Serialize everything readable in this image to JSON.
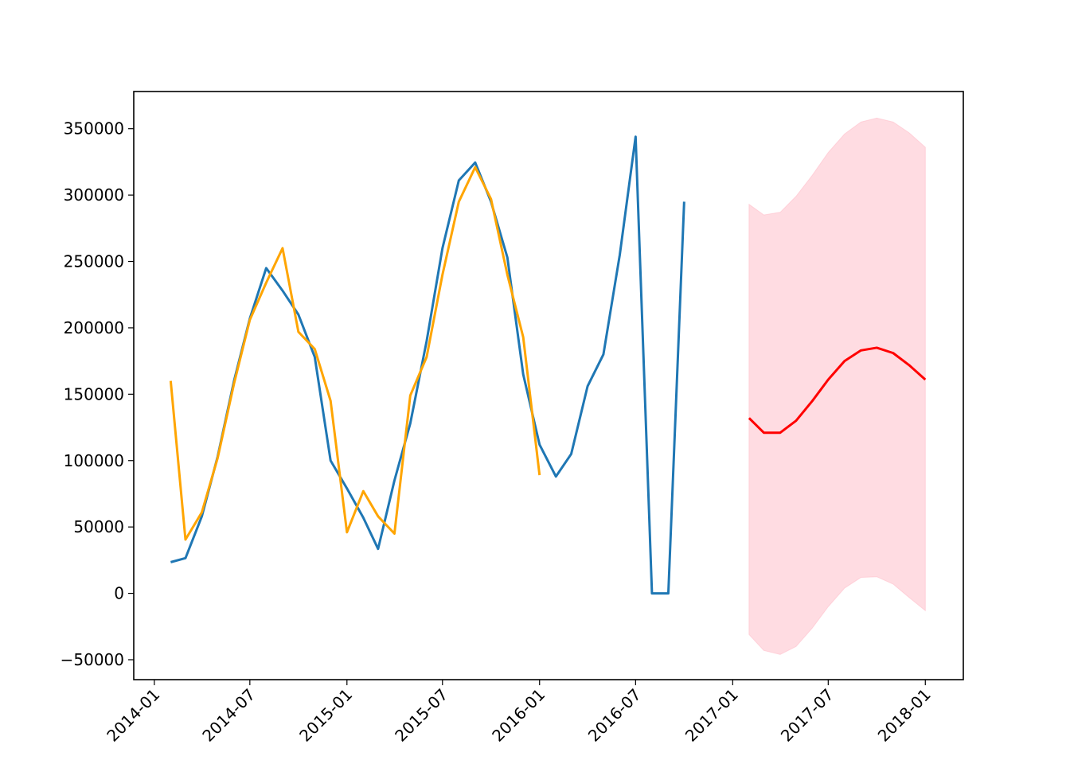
{
  "chart_data": {
    "type": "line",
    "xlim": [
      "2013-11-23",
      "2018-03-14"
    ],
    "ylim": [
      -65000,
      378000
    ],
    "xticks": [
      "2014-01",
      "2014-07",
      "2015-01",
      "2015-07",
      "2016-01",
      "2016-07",
      "2017-01",
      "2017-07",
      "2018-01"
    ],
    "yticks": [
      {
        "value": -50000,
        "label": "−50000"
      },
      0,
      50000,
      100000,
      150000,
      200000,
      250000,
      300000,
      350000
    ],
    "series": [
      {
        "color": "#1f77b4",
        "x": [
          "2014-02",
          "2014-03",
          "2014-04",
          "2014-05",
          "2014-06",
          "2014-07",
          "2014-08",
          "2014-09",
          "2014-10",
          "2014-11",
          "2014-12",
          "2015-01",
          "2015-02",
          "2015-03",
          "2015-04",
          "2015-05",
          "2015-06",
          "2015-07",
          "2015-08",
          "2015-09",
          "2015-10",
          "2015-11",
          "2015-12",
          "2016-01",
          "2016-02",
          "2016-03",
          "2016-04",
          "2016-05",
          "2016-06",
          "2016-07",
          "2016-08",
          "2016-09",
          "2016-10"
        ],
        "values": [
          23500,
          26500,
          58000,
          103000,
          160000,
          207000,
          245000,
          228000,
          210000,
          178000,
          100000,
          79000,
          57000,
          33500,
          85000,
          128000,
          190000,
          260000,
          311000,
          324500,
          295000,
          253000,
          165000,
          112000,
          88000,
          105000,
          156000,
          180000,
          255000,
          344000,
          0,
          0,
          295000
        ]
      },
      {
        "color": "#ffa500",
        "x": [
          "2014-02",
          "2014-03",
          "2014-04",
          "2014-05",
          "2014-06",
          "2014-07",
          "2014-08",
          "2014-09",
          "2014-10",
          "2014-11",
          "2014-12",
          "2015-01",
          "2015-02",
          "2015-03",
          "2015-04",
          "2015-05",
          "2015-06",
          "2015-07",
          "2015-08",
          "2015-09",
          "2015-10",
          "2015-11",
          "2015-12",
          "2016-01"
        ],
        "values": [
          160000,
          40500,
          61000,
          102000,
          158000,
          206000,
          234000,
          260000,
          197000,
          184000,
          145000,
          46000,
          77000,
          58000,
          45000,
          149000,
          178000,
          240000,
          295000,
          321000,
          297000,
          240000,
          193000,
          89000
        ]
      },
      {
        "color": "#ff0000",
        "band_color": "#ffc0cb",
        "x": [
          "2017-02",
          "2017-03",
          "2017-04",
          "2017-05",
          "2017-06",
          "2017-07",
          "2017-08",
          "2017-09",
          "2017-10",
          "2017-11",
          "2017-12",
          "2018-01"
        ],
        "values": [
          132000,
          121000,
          121000,
          130000,
          145000,
          161000,
          175000,
          183000,
          185000,
          181000,
          172000,
          161000
        ],
        "upper": [
          293000,
          285000,
          287000,
          299000,
          315000,
          332000,
          346000,
          355000,
          358000,
          355000,
          347000,
          336000
        ],
        "lower": [
          -31000,
          -43000,
          -46000,
          -40000,
          -26000,
          -10000,
          4000,
          12000,
          12500,
          7000,
          -3000,
          -13000
        ]
      }
    ]
  }
}
